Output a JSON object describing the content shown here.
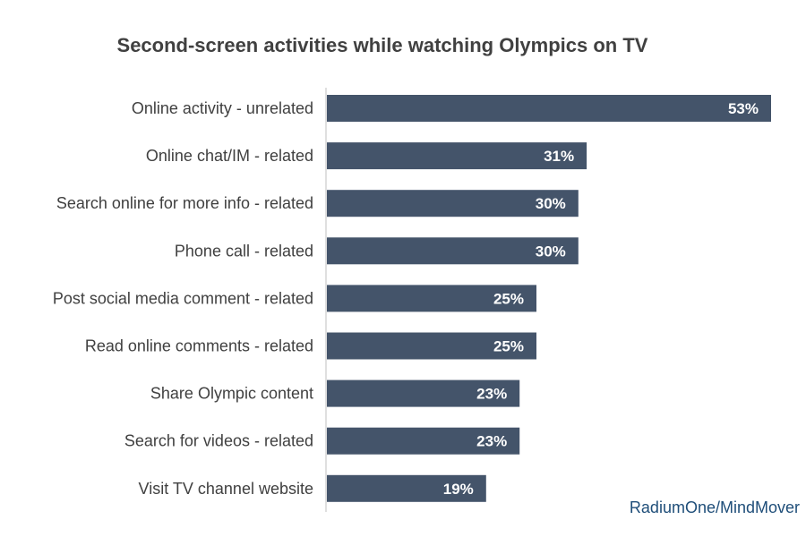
{
  "chart_data": {
    "type": "bar",
    "orientation": "horizontal",
    "title": "Second-screen activities while watching Olympics on TV",
    "categories": [
      "Online activity - unrelated",
      "Online chat/IM - related",
      "Search online for more info - related",
      "Phone call - related",
      "Post social media comment - related",
      "Read online comments - related",
      "Share Olympic content",
      "Search for videos - related",
      "Visit TV channel website"
    ],
    "values": [
      53,
      31,
      30,
      30,
      25,
      25,
      23,
      23,
      19
    ],
    "value_labels": [
      "53%",
      "31%",
      "30%",
      "30%",
      "25%",
      "25%",
      "23%",
      "23%",
      "19%"
    ],
    "xlim": [
      0,
      53
    ],
    "grid": false,
    "legend": "none",
    "bar_color": "#44546a",
    "label_color": "#ffffff",
    "source": "RadiumOne/MindMover",
    "source_color": "#1f4e79"
  }
}
